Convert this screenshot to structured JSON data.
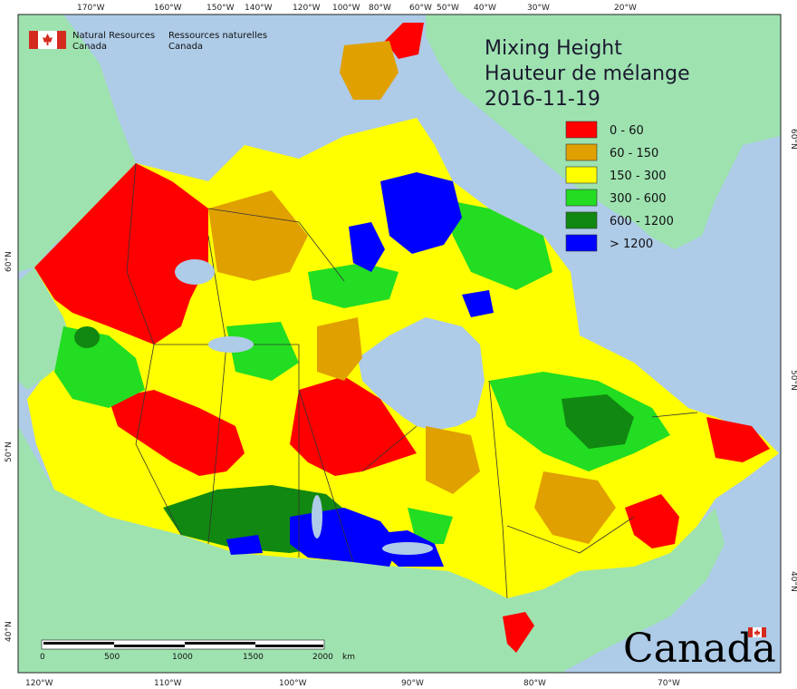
{
  "agency": {
    "en_line1": "Natural Resources",
    "en_line2": "Canada",
    "fr_line1": "Ressources naturelles",
    "fr_line2": "Canada"
  },
  "title": {
    "line1": "Mixing Height",
    "line2": "Hauteur de mélange",
    "date": "2016-11-19"
  },
  "legend": [
    {
      "label": "0 - 60",
      "color": "#ff0000"
    },
    {
      "label": "60 - 150",
      "color": "#e0a000"
    },
    {
      "label": "150 - 300",
      "color": "#ffff00"
    },
    {
      "label": "300 - 600",
      "color": "#22dd22"
    },
    {
      "label": "600 - 1200",
      "color": "#118811"
    },
    {
      "label": "> 1200",
      "color": "#0000ff"
    }
  ],
  "top_ticks": [
    "170°W",
    "160°W",
    "150°W",
    "140°W",
    "120°W",
    "100°W",
    "80°W",
    "60°W",
    "50°W",
    "40°W",
    "30°W",
    "20°W"
  ],
  "bottom_ticks": [
    "120°W",
    "110°W",
    "100°W",
    "90°W",
    "80°W",
    "70°W"
  ],
  "left_ticks": [
    "60°N",
    "50°N",
    "40°N"
  ],
  "right_ticks": [
    "60°N",
    "50°N",
    "40°N"
  ],
  "scale_bar": {
    "labels": [
      "0",
      "500",
      "1000",
      "1500",
      "2000"
    ],
    "unit": "km"
  },
  "wordmark": "Canada",
  "colors": {
    "ocean": "#aecbe8",
    "land_other": "#9ee2b0",
    "border": "#333333"
  }
}
